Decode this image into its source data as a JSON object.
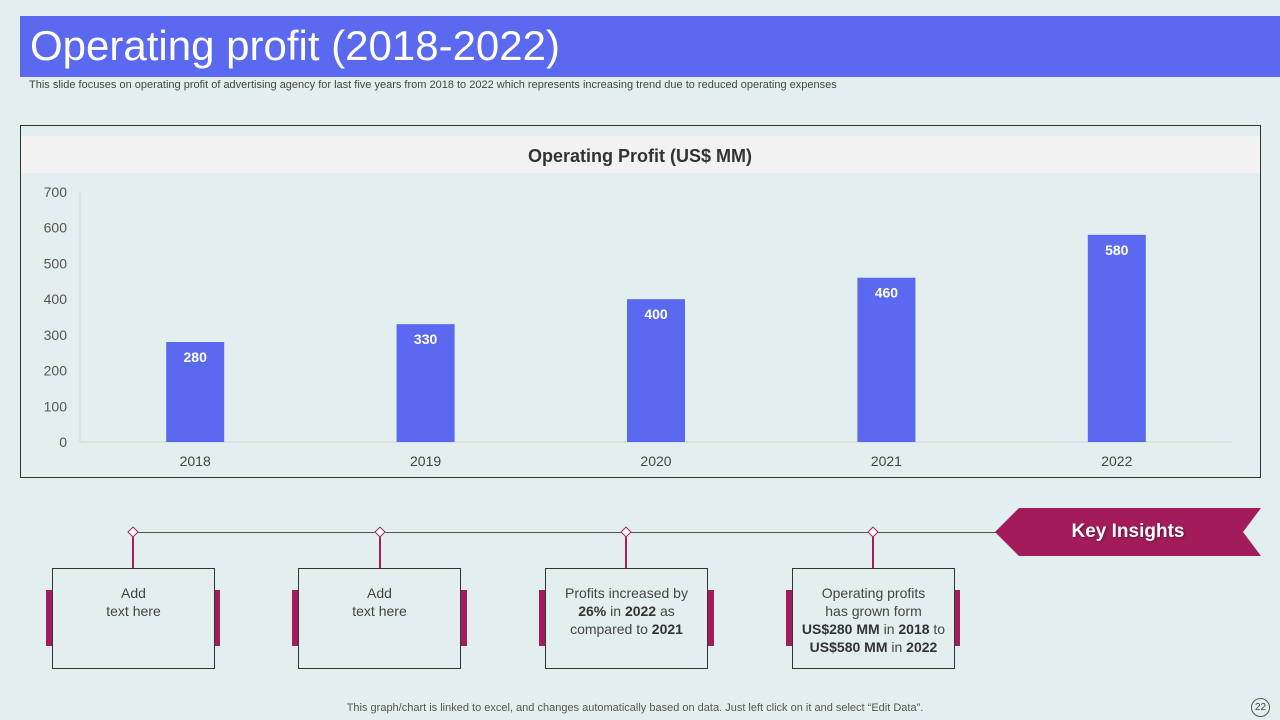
{
  "slide": {
    "title": "Operating profit (2018-2022)",
    "subtitle": "This slide focuses on operating profit of advertising agency for  last five  years from 2018 to 2022 which represents increasing trend due to reduced operating expenses",
    "footer": "This graph/chart is linked to excel,  and changes automatically based on data. Just left click on it and select “Edit Data”.",
    "page_number": "22"
  },
  "chart_data": {
    "type": "bar",
    "title": "Operating Profit (US$ MM)",
    "categories": [
      "2018",
      "2019",
      "2020",
      "2021",
      "2022"
    ],
    "values": [
      280,
      330,
      400,
      460,
      580
    ],
    "ylim": [
      0,
      700
    ],
    "yticks": [
      0,
      100,
      200,
      300,
      400,
      500,
      600,
      700
    ],
    "xlabel": "",
    "ylabel": "",
    "bar_color": "#5b69f0"
  },
  "insights": {
    "banner_label": "Key Insights",
    "banner_color": "#a31b5a",
    "boxes": [
      {
        "lines": [
          {
            "parts": [
              {
                "t": "Add",
                "b": false
              }
            ]
          },
          {
            "parts": [
              {
                "t": "text here",
                "b": false
              }
            ]
          }
        ]
      },
      {
        "lines": [
          {
            "parts": [
              {
                "t": "Add",
                "b": false
              }
            ]
          },
          {
            "parts": [
              {
                "t": "text here",
                "b": false
              }
            ]
          }
        ]
      },
      {
        "lines": [
          {
            "parts": [
              {
                "t": "Profits increased by",
                "b": false
              }
            ]
          },
          {
            "parts": [
              {
                "t": "26%",
                "b": true
              },
              {
                "t": " in ",
                "b": false
              },
              {
                "t": "2022",
                "b": true
              },
              {
                "t": " as",
                "b": false
              }
            ]
          },
          {
            "parts": [
              {
                "t": "compared to ",
                "b": false
              },
              {
                "t": "2021",
                "b": true
              }
            ]
          }
        ]
      },
      {
        "lines": [
          {
            "parts": [
              {
                "t": "Operating profits",
                "b": false
              }
            ]
          },
          {
            "parts": [
              {
                "t": "has grown form",
                "b": false
              }
            ]
          },
          {
            "parts": [
              {
                "t": "US$280 MM",
                "b": true
              },
              {
                "t": " in ",
                "b": false
              },
              {
                "t": "2018",
                "b": true
              },
              {
                "t": " to",
                "b": false
              }
            ]
          },
          {
            "parts": [
              {
                "t": "US$580 MM",
                "b": true
              },
              {
                "t": " in ",
                "b": false
              },
              {
                "t": "2022",
                "b": true
              }
            ]
          }
        ]
      }
    ]
  }
}
